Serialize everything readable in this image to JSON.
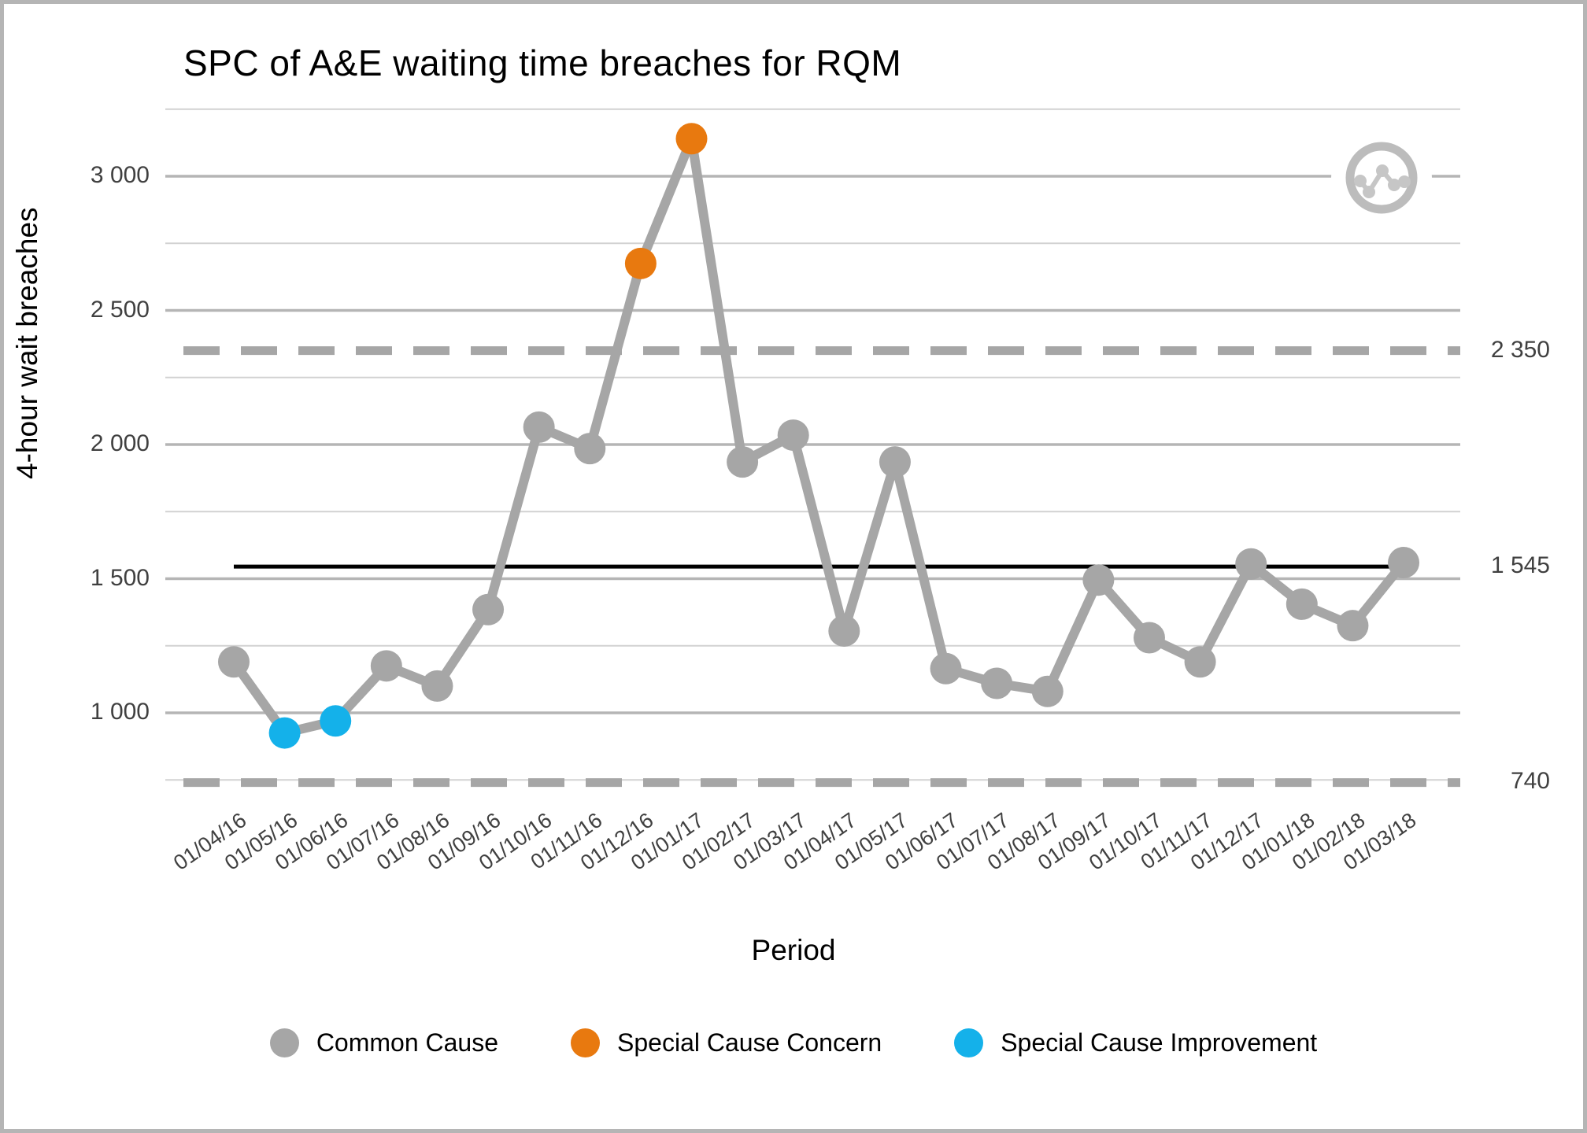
{
  "title": "SPC of A&E waiting time breaches for RQM",
  "y_axis": {
    "label": "4-hour wait breaches",
    "ticks": [
      {
        "value": 3000,
        "label": "3 000"
      },
      {
        "value": 2500,
        "label": "2 500"
      },
      {
        "value": 2000,
        "label": "2 000"
      },
      {
        "value": 1500,
        "label": "1 500"
      },
      {
        "value": 1000,
        "label": "1 000"
      }
    ],
    "minor_gridlines": [
      3250,
      2750,
      2250,
      1750,
      1250,
      750
    ]
  },
  "x_axis": {
    "label": "Period",
    "ticks": [
      "01/04/16",
      "01/05/16",
      "01/06/16",
      "01/07/16",
      "01/08/16",
      "01/09/16",
      "01/10/16",
      "01/11/16",
      "01/12/16",
      "01/01/17",
      "01/02/17",
      "01/03/17",
      "01/04/17",
      "01/05/17",
      "01/06/17",
      "01/07/17",
      "01/08/17",
      "01/09/17",
      "01/10/17",
      "01/11/17",
      "01/12/17",
      "01/01/18",
      "01/02/18",
      "01/03/18"
    ]
  },
  "limits": {
    "ucl": {
      "value": 2350,
      "label": "2 350"
    },
    "mean": {
      "value": 1545,
      "label": "1 545"
    },
    "lcl": {
      "value": 740,
      "label": "740"
    }
  },
  "legend": [
    {
      "label": "Common Cause",
      "color_key": "common"
    },
    {
      "label": "Special Cause Concern",
      "color_key": "concern"
    },
    {
      "label": "Special Cause Improvement",
      "color_key": "improvement"
    }
  ],
  "colors": {
    "common": "#a6a6a6",
    "concern": "#e8790f",
    "improvement": "#14b1ea",
    "data_line": "#a6a6a6",
    "mean_line": "#000000",
    "limit_line": "#a6a6a6",
    "grid_major": "#b5b5b5",
    "grid_minor": "#d2d2d2",
    "tick_text": "#404040",
    "icon_gray": "#bcbcbc"
  },
  "icon": {
    "name": "spc-line-chart-icon"
  },
  "chart_data": {
    "type": "line",
    "title": "SPC of A&E waiting time breaches for RQM",
    "xlabel": "Period",
    "ylabel": "4-hour wait breaches",
    "x": [
      "01/04/16",
      "01/05/16",
      "01/06/16",
      "01/07/16",
      "01/08/16",
      "01/09/16",
      "01/10/16",
      "01/11/16",
      "01/12/16",
      "01/01/17",
      "01/02/17",
      "01/03/17",
      "01/04/17",
      "01/05/17",
      "01/06/17",
      "01/07/17",
      "01/08/17",
      "01/09/17",
      "01/10/17",
      "01/11/17",
      "01/12/17",
      "01/01/18",
      "01/02/18",
      "01/03/18"
    ],
    "series": [
      {
        "name": "4-hour wait breaches",
        "values": [
          1190,
          925,
          970,
          1175,
          1100,
          1385,
          2065,
          1985,
          2675,
          3140,
          1935,
          2035,
          1305,
          1935,
          1165,
          1110,
          1080,
          1495,
          1280,
          1190,
          1555,
          1405,
          1325,
          1560
        ]
      }
    ],
    "point_types": [
      "common",
      "improvement",
      "improvement",
      "common",
      "common",
      "common",
      "common",
      "common",
      "concern",
      "concern",
      "common",
      "common",
      "common",
      "common",
      "common",
      "common",
      "common",
      "common",
      "common",
      "common",
      "common",
      "common",
      "common",
      "common"
    ],
    "mean": 1545,
    "ucl": 2350,
    "lcl": 740,
    "ylim": [
      650,
      3300
    ],
    "yticks_major": [
      1000,
      1500,
      2000,
      2500,
      3000
    ],
    "yticks_minor": [
      750,
      1250,
      1750,
      2250,
      2750,
      3250
    ],
    "grid": "horizontal-only",
    "legend_position": "bottom"
  }
}
